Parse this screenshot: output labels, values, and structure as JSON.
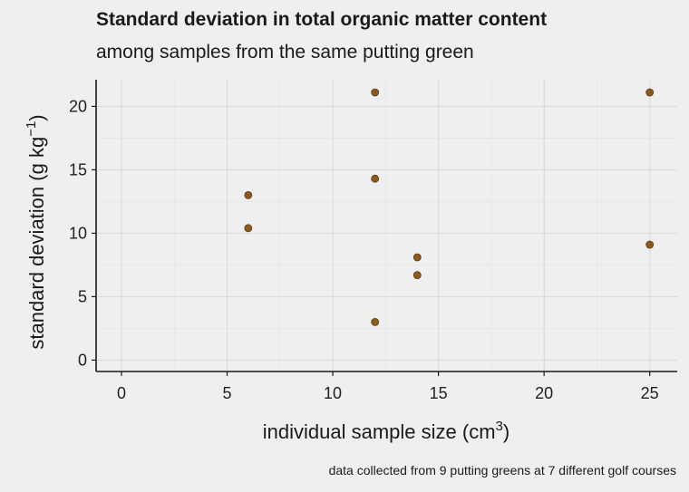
{
  "chart_data": {
    "type": "scatter",
    "title": "Standard deviation in total organic matter content",
    "subtitle": "among samples from the same putting green",
    "xlabel": "individual sample size",
    "xlabel_unit": "cm",
    "xlabel_unit_exp": "3",
    "ylabel": "standard deviation",
    "ylabel_unit_a": "g kg",
    "ylabel_unit_exp": "−1",
    "caption": "data collected from 9 putting greens at 7 different golf courses",
    "xlim": [
      -1.2,
      26.3
    ],
    "ylim": [
      -0.9,
      22.1
    ],
    "x_ticks": [
      0,
      5,
      10,
      15,
      20,
      25
    ],
    "y_ticks": [
      0,
      5,
      10,
      15,
      20
    ],
    "point_color": "#8b5a22",
    "point_stroke": "#5a3a14",
    "grid": true,
    "points": [
      {
        "x": 6,
        "y": 13.0
      },
      {
        "x": 6,
        "y": 10.4
      },
      {
        "x": 12,
        "y": 21.1
      },
      {
        "x": 12,
        "y": 14.3
      },
      {
        "x": 12,
        "y": 3.0
      },
      {
        "x": 14,
        "y": 8.1
      },
      {
        "x": 14,
        "y": 6.7
      },
      {
        "x": 25,
        "y": 21.1
      },
      {
        "x": 25,
        "y": 9.1
      }
    ]
  }
}
